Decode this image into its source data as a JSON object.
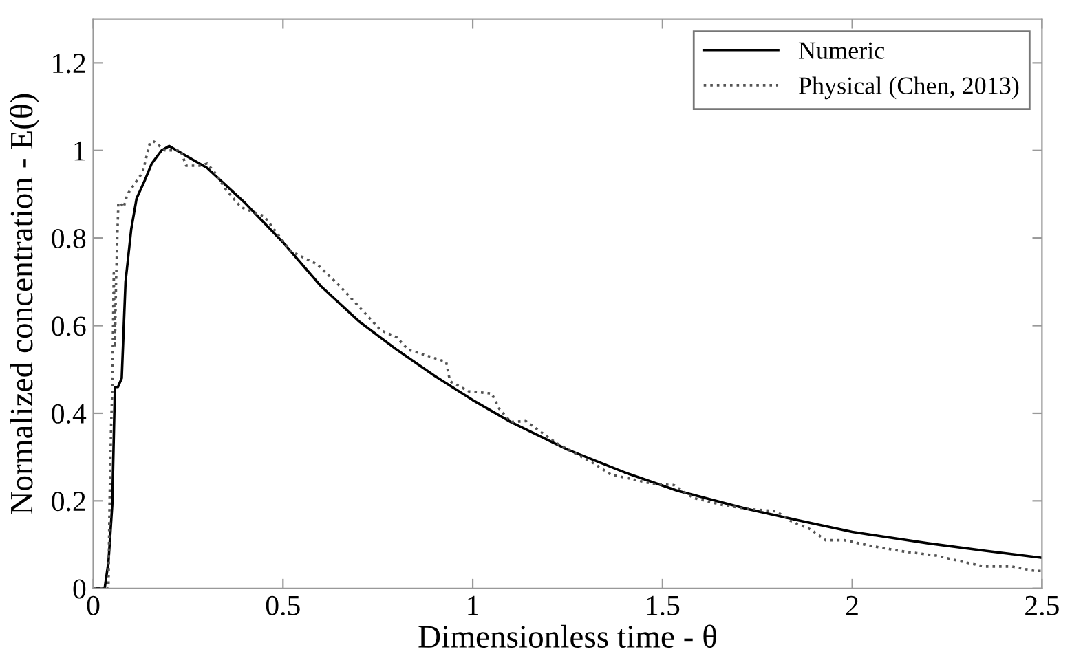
{
  "chart_data": {
    "type": "line",
    "xlabel": "Dimensionless time - θ",
    "ylabel": "Normalized concentration - E(θ)",
    "xlim": [
      0,
      2.5
    ],
    "ylim": [
      0,
      1.3
    ],
    "xticks": [
      0,
      0.5,
      1,
      1.5,
      2,
      2.5
    ],
    "yticks": [
      0,
      0.2,
      0.4,
      0.6,
      0.8,
      1,
      1.2
    ],
    "grid": false,
    "legend": "top right",
    "series": [
      {
        "name": "Numeric",
        "color": "#000000",
        "line_style": "solid",
        "x": [
          0,
          0.03,
          0.04,
          0.05,
          0.057,
          0.065,
          0.075,
          0.085,
          0.1,
          0.114,
          0.135,
          0.154,
          0.18,
          0.2,
          0.3,
          0.4,
          0.5,
          0.6,
          0.7,
          0.8,
          0.9,
          1.0,
          1.1,
          1.25,
          1.4,
          1.54,
          1.72,
          1.85,
          2.0,
          2.2,
          2.35,
          2.5
        ],
        "values": [
          0,
          0,
          0.06,
          0.19,
          0.46,
          0.46,
          0.48,
          0.7,
          0.82,
          0.89,
          0.93,
          0.97,
          1.0,
          1.01,
          0.96,
          0.88,
          0.79,
          0.69,
          0.61,
          0.545,
          0.485,
          0.43,
          0.38,
          0.317,
          0.265,
          0.223,
          0.182,
          0.157,
          0.129,
          0.103,
          0.086,
          0.07
        ]
      },
      {
        "name": "Physical (Chen, 2013)",
        "color": "#555555",
        "line_style": "dotted",
        "x": [
          0,
          0.04,
          0.043,
          0.047,
          0.05,
          0.054,
          0.057,
          0.06,
          0.066,
          0.072,
          0.08,
          0.09,
          0.114,
          0.13,
          0.15,
          0.16,
          0.19,
          0.23,
          0.245,
          0.28,
          0.3,
          0.32,
          0.35,
          0.39,
          0.45,
          0.52,
          0.59,
          0.65,
          0.757,
          0.8,
          0.83,
          0.85,
          0.93,
          0.94,
          0.99,
          1.05,
          1.07,
          1.1,
          1.14,
          1.22,
          1.32,
          1.364,
          1.48,
          1.53,
          1.58,
          1.66,
          1.72,
          1.8,
          1.84,
          1.89,
          1.93,
          1.98,
          2.05,
          2.13,
          2.22,
          2.28,
          2.35,
          2.42,
          2.48,
          2.5
        ],
        "values": [
          0,
          0,
          0.2,
          0.37,
          0.45,
          0.72,
          0.55,
          0.7,
          0.88,
          0.88,
          0.87,
          0.9,
          0.93,
          0.95,
          1.02,
          1.02,
          1.0,
          1.0,
          0.965,
          0.965,
          0.97,
          0.95,
          0.91,
          0.87,
          0.85,
          0.77,
          0.74,
          0.69,
          0.59,
          0.573,
          0.545,
          0.54,
          0.517,
          0.473,
          0.45,
          0.445,
          0.41,
          0.38,
          0.382,
          0.332,
          0.285,
          0.26,
          0.238,
          0.236,
          0.207,
          0.19,
          0.182,
          0.176,
          0.153,
          0.135,
          0.11,
          0.11,
          0.097,
          0.085,
          0.075,
          0.063,
          0.05,
          0.05,
          0.04,
          0.04
        ]
      }
    ]
  }
}
